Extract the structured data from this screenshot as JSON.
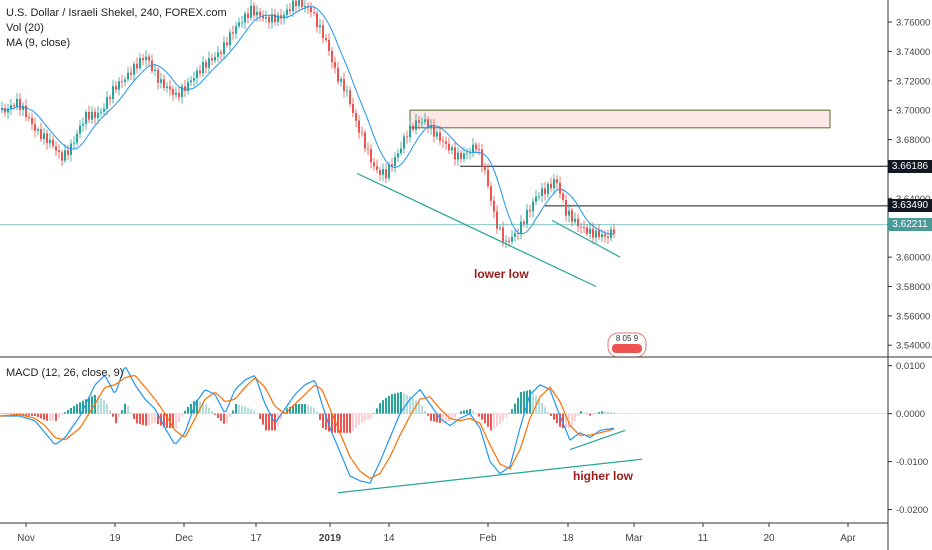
{
  "header": {
    "title": "U.S. Dollar / Israeli Shekel, 240, FOREX.com",
    "indicators": [
      "Vol (20)",
      "MA (9, close)"
    ],
    "macd_label": "MACD (12, 26, close, 9)"
  },
  "annotations": {
    "lower_low": "lower low",
    "higher_low": "higher low"
  },
  "price_labels": [
    {
      "value": "3.66186",
      "bg": "#131722"
    },
    {
      "value": "3.63490",
      "bg": "#131722"
    },
    {
      "value": "3.62211",
      "bg": "#4a9a98"
    }
  ],
  "chart_data": [
    {
      "type": "candlestick",
      "title": "U.S. Dollar / Israeli Shekel, 240, FOREX.com",
      "x_ticks": [
        "Nov",
        "19",
        "Dec",
        "17",
        "2019",
        "14",
        "Feb",
        "18",
        "Mar",
        "11",
        "20",
        "Apr"
      ],
      "y_ticks": [
        "3.76000",
        "3.74000",
        "3.72000",
        "3.70000",
        "3.68000",
        "3.66000",
        "3.64000",
        "3.62000",
        "3.60000",
        "3.58000",
        "3.56000",
        "3.54000"
      ],
      "ylim": [
        3.532,
        3.775
      ],
      "current_price": 3.62211,
      "moving_average": "MA (9, close)",
      "close_path": [
        [
          0,
          3.7
        ],
        [
          15,
          3.705
        ],
        [
          30,
          3.692
        ],
        [
          45,
          3.68
        ],
        [
          60,
          3.668
        ],
        [
          72,
          3.678
        ],
        [
          85,
          3.695
        ],
        [
          100,
          3.7
        ],
        [
          115,
          3.715
        ],
        [
          130,
          3.728
        ],
        [
          145,
          3.735
        ],
        [
          160,
          3.72
        ],
        [
          175,
          3.708
        ],
        [
          190,
          3.722
        ],
        [
          205,
          3.73
        ],
        [
          220,
          3.742
        ],
        [
          235,
          3.755
        ],
        [
          250,
          3.77
        ],
        [
          265,
          3.76
        ],
        [
          280,
          3.765
        ],
        [
          295,
          3.772
        ],
        [
          310,
          3.77
        ],
        [
          325,
          3.745
        ],
        [
          335,
          3.725
        ],
        [
          345,
          3.715
        ],
        [
          355,
          3.69
        ],
        [
          365,
          3.675
        ],
        [
          375,
          3.66
        ],
        [
          385,
          3.655
        ],
        [
          395,
          3.668
        ],
        [
          405,
          3.685
        ],
        [
          415,
          3.69
        ],
        [
          425,
          3.692
        ],
        [
          435,
          3.685
        ],
        [
          445,
          3.675
        ],
        [
          455,
          3.668
        ],
        [
          465,
          3.672
        ],
        [
          475,
          3.675
        ],
        [
          485,
          3.655
        ],
        [
          495,
          3.625
        ],
        [
          505,
          3.608
        ],
        [
          515,
          3.615
        ],
        [
          525,
          3.63
        ],
        [
          535,
          3.64
        ],
        [
          545,
          3.645
        ],
        [
          555,
          3.655
        ],
        [
          565,
          3.63
        ],
        [
          575,
          3.622
        ],
        [
          585,
          3.62
        ],
        [
          595,
          3.615
        ],
        [
          605,
          3.612
        ],
        [
          615,
          3.622
        ]
      ],
      "zones": [
        {
          "from": 3.688,
          "to": 3.7,
          "start": 410,
          "end": 830
        }
      ],
      "levels": [
        {
          "value": 3.66186,
          "start": 460
        },
        {
          "value": 3.6349,
          "start": 545
        }
      ],
      "trendlines": [
        {
          "x1": 357,
          "y1": 3.657,
          "x2": 596,
          "y2": 3.58
        },
        {
          "x1": 552,
          "y1": 3.625,
          "x2": 620,
          "y2": 3.6
        }
      ],
      "watermark_text": "8 05 9"
    },
    {
      "type": "macd",
      "title": "MACD (12, 26, close, 9)",
      "y_ticks": [
        "0.0100",
        "0.0000",
        "-0.0100",
        "-0.0200"
      ],
      "ylim": [
        -0.0228,
        0.0118
      ],
      "macd_line": [
        [
          0,
          -0.0005
        ],
        [
          20,
          -0.0005
        ],
        [
          35,
          -0.0015
        ],
        [
          45,
          -0.004
        ],
        [
          55,
          -0.0065
        ],
        [
          65,
          -0.005
        ],
        [
          80,
          -0.0005
        ],
        [
          95,
          0.006
        ],
        [
          105,
          0.008
        ],
        [
          115,
          0.004
        ],
        [
          125,
          0.01
        ],
        [
          135,
          0.006
        ],
        [
          145,
          0.003
        ],
        [
          155,
          0.001
        ],
        [
          165,
          -0.003
        ],
        [
          175,
          -0.0065
        ],
        [
          185,
          -0.004
        ],
        [
          195,
          0.002
        ],
        [
          205,
          0.005
        ],
        [
          215,
          0.004
        ],
        [
          225,
          0.0
        ],
        [
          235,
          0.005
        ],
        [
          245,
          0.007
        ],
        [
          255,
          0.008
        ],
        [
          265,
          0.002
        ],
        [
          275,
          -0.002
        ],
        [
          285,
          0.001
        ],
        [
          295,
          0.004
        ],
        [
          305,
          0.006
        ],
        [
          315,
          0.007
        ],
        [
          322,
          0.002
        ],
        [
          330,
          -0.003
        ],
        [
          340,
          -0.008
        ],
        [
          350,
          -0.013
        ],
        [
          360,
          -0.014
        ],
        [
          370,
          -0.0145
        ],
        [
          380,
          -0.01
        ],
        [
          390,
          -0.005
        ],
        [
          400,
          0.0
        ],
        [
          410,
          0.003
        ],
        [
          420,
          0.005
        ],
        [
          430,
          0.002
        ],
        [
          440,
          -0.001
        ],
        [
          450,
          -0.0025
        ],
        [
          460,
          -0.001
        ],
        [
          470,
          0.0
        ],
        [
          480,
          -0.003
        ],
        [
          490,
          -0.01
        ],
        [
          500,
          -0.0125
        ],
        [
          510,
          -0.011
        ],
        [
          520,
          -0.003
        ],
        [
          530,
          0.004
        ],
        [
          540,
          0.006
        ],
        [
          550,
          0.005
        ],
        [
          560,
          -0.0005
        ],
        [
          570,
          -0.0055
        ],
        [
          580,
          -0.004
        ],
        [
          590,
          -0.005
        ],
        [
          600,
          -0.0035
        ],
        [
          615,
          -0.003
        ]
      ],
      "signal_line": [
        [
          0,
          -0.0005
        ],
        [
          20,
          -0.0002
        ],
        [
          35,
          -0.001
        ],
        [
          45,
          -0.0025
        ],
        [
          55,
          -0.005
        ],
        [
          65,
          -0.0055
        ],
        [
          80,
          -0.003
        ],
        [
          95,
          0.002
        ],
        [
          105,
          0.0055
        ],
        [
          115,
          0.006
        ],
        [
          125,
          0.0075
        ],
        [
          135,
          0.008
        ],
        [
          145,
          0.0055
        ],
        [
          155,
          0.003
        ],
        [
          165,
          0.0
        ],
        [
          175,
          -0.0035
        ],
        [
          185,
          -0.005
        ],
        [
          195,
          -0.001
        ],
        [
          205,
          0.003
        ],
        [
          215,
          0.0045
        ],
        [
          225,
          0.0025
        ],
        [
          235,
          0.003
        ],
        [
          245,
          0.0055
        ],
        [
          255,
          0.0075
        ],
        [
          265,
          0.0055
        ],
        [
          275,
          0.0015
        ],
        [
          285,
          0.0
        ],
        [
          295,
          0.002
        ],
        [
          305,
          0.004
        ],
        [
          315,
          0.006
        ],
        [
          322,
          0.005
        ],
        [
          330,
          0.001
        ],
        [
          340,
          -0.004
        ],
        [
          350,
          -0.009
        ],
        [
          360,
          -0.012
        ],
        [
          370,
          -0.0135
        ],
        [
          380,
          -0.0125
        ],
        [
          390,
          -0.009
        ],
        [
          400,
          -0.0045
        ],
        [
          410,
          -0.0005
        ],
        [
          420,
          0.003
        ],
        [
          430,
          0.0035
        ],
        [
          440,
          0.001
        ],
        [
          450,
          -0.001
        ],
        [
          460,
          -0.0015
        ],
        [
          470,
          -0.001
        ],
        [
          480,
          -0.002
        ],
        [
          490,
          -0.0065
        ],
        [
          500,
          -0.0105
        ],
        [
          510,
          -0.0115
        ],
        [
          520,
          -0.0075
        ],
        [
          530,
          -0.001
        ],
        [
          540,
          0.0035
        ],
        [
          550,
          0.0055
        ],
        [
          560,
          0.0025
        ],
        [
          570,
          -0.0025
        ],
        [
          580,
          -0.0045
        ],
        [
          590,
          -0.0045
        ],
        [
          600,
          -0.004
        ],
        [
          615,
          -0.0032
        ]
      ],
      "trendlines": [
        {
          "x1": 338,
          "y1": -0.0165,
          "x2": 642,
          "y2": -0.0095
        },
        {
          "x1": 570,
          "y1": -0.0075,
          "x2": 625,
          "y2": -0.0035
        }
      ]
    }
  ],
  "colors": {
    "up": "#26a69a",
    "down": "#ef5350",
    "ma": "#2196f3",
    "macd": "#2196f3",
    "signal": "#ff6d00",
    "hist_up": "#26a69a",
    "hist_up_light": "#b2dfdb",
    "hist_down": "#ef5350",
    "hist_down_light": "#ffcdd2",
    "trend": "#26a69a",
    "zone": "#fce8e6",
    "axis_text": "#444444"
  }
}
